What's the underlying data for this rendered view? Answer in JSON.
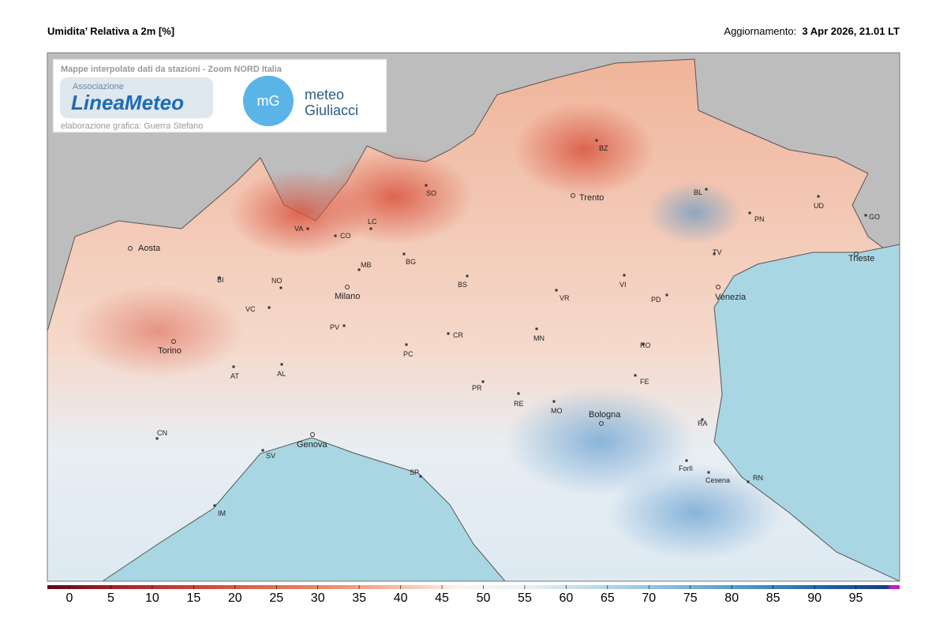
{
  "header": {
    "title": "Umidita’ Relativa a 2m [%]",
    "update_label": "Aggiornamento:",
    "update_value": "3 Apr 2026, 21.01 LT"
  },
  "banner": {
    "caption": "Mappe interpolate dati da stazioni - Zoom NORD Italia",
    "logo1_top": "Associazione",
    "logo1_main": "LineaMeteo",
    "credit": "elaborazione grafica: Guerra Stefano",
    "logo2_badge": "mG",
    "logo2_line1": "meteo",
    "logo2_line2": "Giuliacci"
  },
  "cities": [
    "Aosta",
    "BI",
    "NO",
    "VA",
    "CO",
    "LC",
    "SO",
    "MB",
    "BG",
    "BS",
    "Milano",
    "VC",
    "PV",
    "Torino",
    "AT",
    "AL",
    "PC",
    "CR",
    "MN",
    "VR",
    "VI",
    "PD",
    "TV",
    "Venezia",
    "Trento",
    "BZ",
    "BL",
    "PN",
    "UD",
    "GO",
    "Trieste",
    "RO",
    "FE",
    "PR",
    "RE",
    "MO",
    "Bologna",
    "RA",
    "Forlì",
    "Cesena",
    "RN",
    "CN",
    "SV",
    "Genova",
    "SP",
    "IM"
  ],
  "legend": {
    "ticks": [
      0,
      5,
      10,
      15,
      20,
      25,
      30,
      35,
      40,
      45,
      50,
      55,
      60,
      65,
      70,
      75,
      80,
      85,
      90,
      95
    ]
  }
}
